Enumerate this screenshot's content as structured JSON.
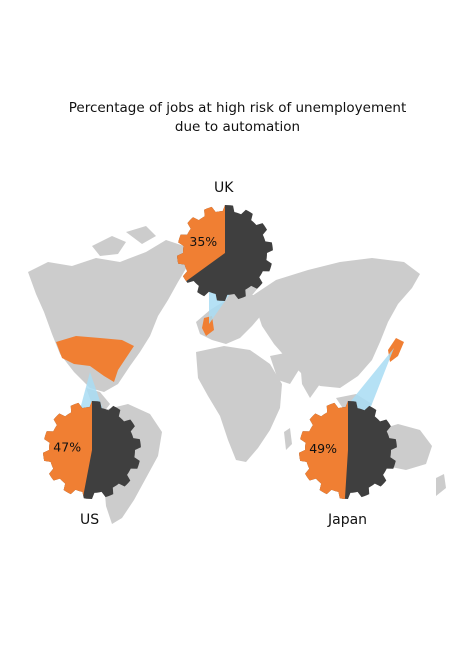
{
  "title_line1": "Percentage of jobs at high risk of unemployement",
  "title_line2": "due to automation",
  "colors": {
    "risk": "#f07f33",
    "rest": "#3f3f3f",
    "map": "#cccccc",
    "highlight": "#f07f33",
    "callout": "#a8dcf3"
  },
  "chart_data": {
    "type": "pie",
    "title": "Percentage of jobs at high risk of unemployement due to automation",
    "unit": "%",
    "countries": [
      {
        "name": "UK",
        "value": 35,
        "label": "35%"
      },
      {
        "name": "US",
        "value": 47,
        "label": "47%"
      },
      {
        "name": "Japan",
        "value": 49,
        "label": "49%"
      }
    ]
  }
}
